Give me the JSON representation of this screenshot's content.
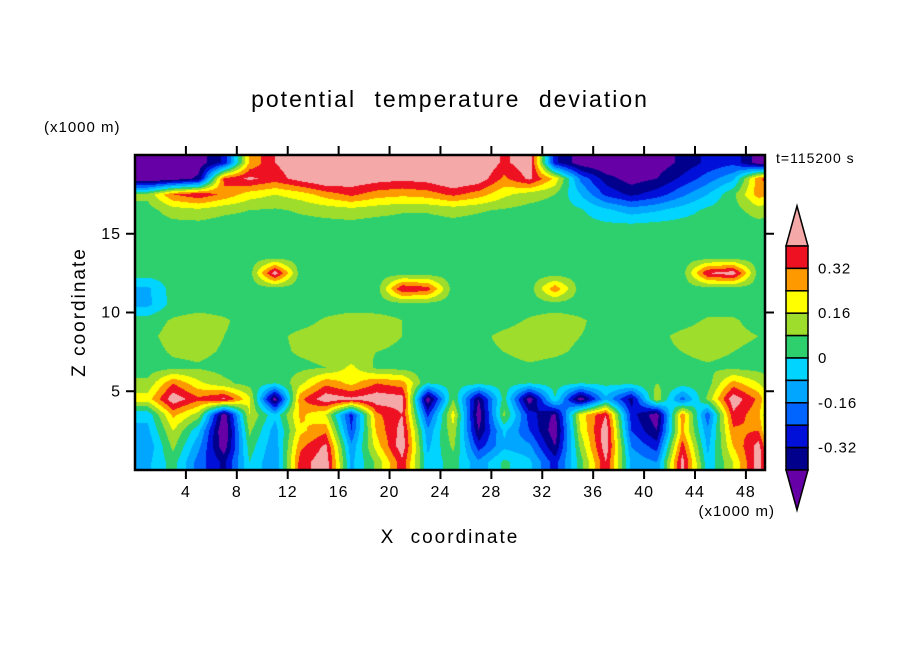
{
  "figure": {
    "title": "potential temperature deviation",
    "time_label": "t=115200 s",
    "background": "#ffffff"
  },
  "axes": {
    "x": {
      "title": "X coordinate",
      "unit": "(x1000 m)",
      "min": 0,
      "max": 49.5,
      "ticks": [
        4,
        8,
        12,
        16,
        20,
        24,
        28,
        32,
        36,
        40,
        44,
        48
      ]
    },
    "z": {
      "title": "Z coordinate",
      "unit": "(x1000 m)",
      "min": 0,
      "max": 20,
      "ticks": [
        5,
        10,
        15
      ]
    }
  },
  "colorbar": {
    "tick_labels": [
      "0.32",
      "0.16",
      "0",
      "-0.16",
      "-0.32"
    ]
  },
  "chart_data": {
    "type": "heatmap",
    "title": "potential temperature deviation",
    "xlabel": "X coordinate (x1000 m)",
    "ylabel": "Z coordinate (x1000 m)",
    "annotation": "t=115200 s",
    "x_range": [
      0,
      49.5
    ],
    "z_range": [
      0,
      20
    ],
    "x_centers": {
      "start": 1,
      "step": 2,
      "count": 26
    },
    "z_centers": {
      "start": 19.5,
      "step": -1,
      "count": 20
    },
    "levels": [
      -0.4,
      -0.32,
      -0.24,
      -0.16,
      -0.08,
      0,
      0.08,
      0.16,
      0.24,
      0.32,
      0.4
    ],
    "colors": [
      "#6600a6",
      "#00008c",
      "#0010d9",
      "#0064ff",
      "#00a6ff",
      "#00d4ff",
      "#2ed06e",
      "#9edd2c",
      "#ffff00",
      "#ff9900",
      "#ee1122",
      "#f5a8a8"
    ],
    "values": [
      [
        -0.5,
        -0.5,
        -0.45,
        -0.3,
        0.25,
        0.4,
        0.46,
        0.5,
        0.5,
        0.5,
        0.5,
        0.48,
        0.46,
        0.5,
        0.38,
        0.46,
        -0.3,
        -0.45,
        -0.5,
        -0.5,
        -0.45,
        -0.38,
        -0.3,
        -0.26,
        -0.45,
        -0.5
      ],
      [
        -0.5,
        -0.46,
        -0.38,
        0.34,
        0.42,
        0.36,
        0.44,
        0.5,
        0.47,
        0.44,
        0.42,
        0.44,
        0.5,
        0.46,
        0.3,
        0.42,
        0.22,
        -0.18,
        -0.36,
        -0.44,
        -0.4,
        -0.3,
        -0.2,
        -0.1,
        0.3,
        0.46
      ],
      [
        0.1,
        0.32,
        0.38,
        0.3,
        0.2,
        0.16,
        0.2,
        0.28,
        0.34,
        0.28,
        0.26,
        0.28,
        0.34,
        0.28,
        0.18,
        0.12,
        0.08,
        -0.08,
        -0.26,
        -0.34,
        -0.28,
        -0.18,
        -0.08,
        0.06,
        0.28,
        0.2
      ],
      [
        0.05,
        0.12,
        0.14,
        0.1,
        0.08,
        0.07,
        0.09,
        0.11,
        0.13,
        0.11,
        0.09,
        0.09,
        0.11,
        0.09,
        0.07,
        0.05,
        0.04,
        0.01,
        -0.06,
        -0.12,
        -0.09,
        -0.04,
        0.02,
        0.05,
        0.12,
        0.07
      ],
      [
        0.04,
        0.05,
        0.05,
        0.04,
        0.04,
        0.04,
        0.05,
        0.05,
        0.05,
        0.04,
        0.04,
        0.04,
        0.05,
        0.04,
        0.04,
        0.04,
        0.04,
        0.03,
        0.02,
        0.02,
        0.03,
        0.04,
        0.04,
        0.04,
        0.05,
        0.04
      ],
      [
        0.04,
        0.04,
        0.05,
        0.04,
        0.04,
        0.04,
        0.04,
        0.05,
        0.04,
        0.04,
        0.04,
        0.04,
        0.04,
        0.04,
        0.04,
        0.04,
        0.04,
        0.03,
        0.03,
        0.03,
        0.03,
        0.04,
        0.04,
        0.04,
        0.04,
        0.04
      ],
      [
        0.04,
        0.04,
        0.04,
        0.04,
        0.04,
        0.05,
        0.04,
        0.04,
        0.04,
        0.04,
        0.04,
        0.04,
        0.04,
        0.04,
        0.04,
        0.04,
        0.04,
        0.04,
        0.03,
        0.03,
        0.04,
        0.04,
        0.04,
        0.04,
        0.04,
        0.04
      ],
      [
        0.04,
        0.04,
        0.04,
        0.04,
        0.04,
        0.45,
        0.04,
        0.04,
        0.04,
        0.04,
        0.04,
        0.04,
        0.04,
        0.04,
        0.04,
        0.04,
        0.04,
        0.04,
        0.04,
        0.04,
        0.04,
        0.04,
        0.4,
        0.45,
        0.04,
        0.04
      ],
      [
        -0.1,
        0.04,
        0.04,
        0.04,
        0.04,
        0.04,
        0.04,
        0.04,
        0.04,
        0.04,
        0.4,
        0.36,
        0.04,
        0.04,
        0.04,
        0.04,
        0.3,
        0.04,
        0.04,
        0.04,
        0.04,
        0.04,
        0.04,
        0.04,
        0.04,
        0.04
      ],
      [
        -0.1,
        0.03,
        0.04,
        0.04,
        0.04,
        0.04,
        0.04,
        0.04,
        0.04,
        0.04,
        0.04,
        0.04,
        0.04,
        0.04,
        0.04,
        0.04,
        0.04,
        0.04,
        0.04,
        0.04,
        0.04,
        0.04,
        0.04,
        0.04,
        0.04,
        0.04
      ],
      [
        0.04,
        0.09,
        0.12,
        0.09,
        0.05,
        0.04,
        0.05,
        0.09,
        0.12,
        0.11,
        0.08,
        0.05,
        0.04,
        0.04,
        0.05,
        0.09,
        0.12,
        0.09,
        0.05,
        0.04,
        0.04,
        0.05,
        0.09,
        0.09,
        0.05,
        0.04
      ],
      [
        0.06,
        0.11,
        0.12,
        0.08,
        0.05,
        0.06,
        0.1,
        0.12,
        0.12,
        0.1,
        0.08,
        0.06,
        0.05,
        0.06,
        0.1,
        0.12,
        0.1,
        0.08,
        0.06,
        0.05,
        0.06,
        0.1,
        0.12,
        0.1,
        0.08,
        0.06
      ],
      [
        0.05,
        0.09,
        0.1,
        0.07,
        0.05,
        0.06,
        0.09,
        0.11,
        0.1,
        0.08,
        0.07,
        0.05,
        0.05,
        0.06,
        0.08,
        0.1,
        0.09,
        0.07,
        0.05,
        0.05,
        0.06,
        0.08,
        0.1,
        0.08,
        0.06,
        0.05
      ],
      [
        0.04,
        0.06,
        0.07,
        0.05,
        0.04,
        0.05,
        0.06,
        0.08,
        0.18,
        0.06,
        0.05,
        0.04,
        0.04,
        0.05,
        0.06,
        0.07,
        0.06,
        0.05,
        0.04,
        0.04,
        0.05,
        0.06,
        0.07,
        0.06,
        0.05,
        0.04
      ],
      [
        0.1,
        0.32,
        0.18,
        0.1,
        0.05,
        0.0,
        0.14,
        0.3,
        0.22,
        0.32,
        0.28,
        0.0,
        0.04,
        0.02,
        0.04,
        0.0,
        0.04,
        0.0,
        0.02,
        0.02,
        0.08,
        0.04,
        0.04,
        0.28,
        0.16,
        0.02
      ],
      [
        0.2,
        0.46,
        0.34,
        0.42,
        0.18,
        -0.46,
        0.3,
        0.46,
        0.42,
        0.46,
        0.44,
        -0.46,
        0.08,
        -0.4,
        0.04,
        -0.46,
        0.0,
        -0.46,
        -0.1,
        -0.36,
        0.14,
        -0.2,
        0.1,
        0.46,
        0.3,
        -0.1
      ],
      [
        -0.06,
        0.26,
        0.12,
        -0.46,
        0.16,
        -0.06,
        0.26,
        0.16,
        -0.28,
        0.3,
        0.4,
        -0.26,
        0.2,
        -0.46,
        0.1,
        -0.28,
        -0.42,
        0.2,
        0.4,
        -0.28,
        -0.46,
        0.3,
        -0.22,
        0.38,
        0.26,
        -0.28
      ],
      [
        -0.1,
        0.16,
        -0.06,
        -0.5,
        0.1,
        -0.12,
        0.22,
        0.3,
        -0.24,
        0.26,
        0.44,
        -0.14,
        0.14,
        -0.4,
        -0.06,
        -0.24,
        -0.46,
        0.16,
        0.46,
        -0.24,
        -0.4,
        0.26,
        -0.14,
        0.3,
        0.32,
        -0.24
      ],
      [
        -0.14,
        0.1,
        -0.14,
        -0.46,
        0.04,
        -0.14,
        0.3,
        0.42,
        -0.14,
        0.2,
        0.46,
        -0.1,
        0.1,
        -0.28,
        -0.1,
        -0.14,
        -0.4,
        0.1,
        0.46,
        -0.16,
        -0.28,
        0.36,
        -0.1,
        0.24,
        0.44,
        -0.16
      ],
      [
        -0.1,
        0.04,
        -0.2,
        -0.34,
        0.0,
        -0.16,
        0.36,
        0.46,
        -0.1,
        0.1,
        0.38,
        -0.06,
        0.04,
        -0.14,
        0.02,
        -0.06,
        -0.28,
        0.04,
        0.4,
        -0.1,
        -0.16,
        0.44,
        -0.06,
        0.16,
        0.46,
        -0.1
      ]
    ]
  }
}
